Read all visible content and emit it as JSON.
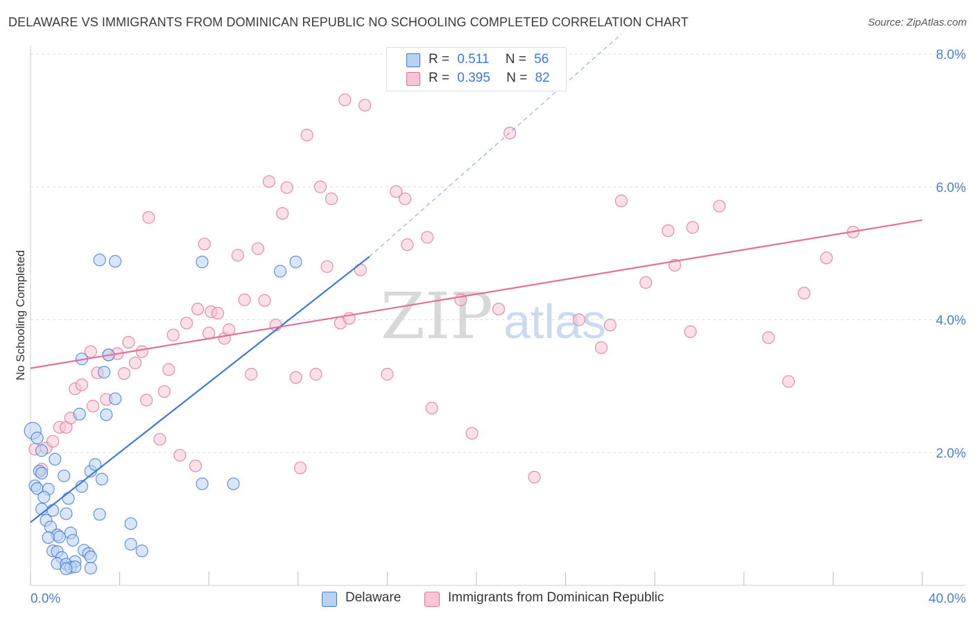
{
  "title": "DELAWARE VS IMMIGRANTS FROM DOMINICAN REPUBLIC NO SCHOOLING COMPLETED CORRELATION CHART",
  "source": "Source: ZipAtlas.com",
  "colors": {
    "blue": "#3c78d8",
    "blue_fill": "#b9d2f3",
    "pink": "#e0709a",
    "pink_fill": "#f7c6d6",
    "grid": "#dddddd"
  },
  "legend": {
    "rows": [
      {
        "r_label": "R =",
        "r_value": "0.511",
        "n_label": "N =",
        "n_value": "56"
      },
      {
        "r_label": "R =",
        "r_value": "0.395",
        "n_label": "N =",
        "n_value": "82"
      }
    ]
  },
  "bottom_legend": {
    "series1": "Delaware",
    "series2": "Immigrants from Dominican Republic"
  },
  "watermark": {
    "zip": "ZIP",
    "atlas": "atlas"
  },
  "chart_data": {
    "type": "scatter",
    "xlabel": "",
    "ylabel": "No Schooling Completed",
    "xlim": [
      0,
      40
    ],
    "ylim": [
      0,
      8
    ],
    "x_tick_labels": [
      "0.0%",
      "40.0%"
    ],
    "y_ticks": [
      2,
      4,
      6,
      8
    ],
    "y_tick_labels": [
      "2.0%",
      "4.0%",
      "6.0%",
      "8.0%"
    ],
    "series": [
      {
        "name": "Delaware",
        "R": 0.511,
        "N": 56,
        "trend": {
          "x0": 0,
          "y0": 0.95,
          "x1": 15.2,
          "y1": 4.95,
          "dashed_to_x": 26.5,
          "dashed_to_y": 8.3
        },
        "points": [
          [
            0.1,
            2.33
          ],
          [
            0.3,
            2.22
          ],
          [
            0.5,
            2.03
          ],
          [
            1.1,
            1.9
          ],
          [
            0.4,
            1.72
          ],
          [
            0.5,
            1.69
          ],
          [
            0.2,
            1.5
          ],
          [
            0.3,
            1.46
          ],
          [
            0.8,
            1.45
          ],
          [
            1.5,
            1.65
          ],
          [
            2.3,
            1.49
          ],
          [
            1.7,
            1.31
          ],
          [
            0.6,
            1.33
          ],
          [
            0.5,
            1.15
          ],
          [
            1.0,
            1.13
          ],
          [
            1.6,
            1.08
          ],
          [
            3.1,
            1.07
          ],
          [
            0.7,
            0.98
          ],
          [
            0.9,
            0.88
          ],
          [
            1.2,
            0.76
          ],
          [
            1.8,
            0.79
          ],
          [
            1.3,
            0.73
          ],
          [
            0.8,
            0.72
          ],
          [
            1.9,
            0.68
          ],
          [
            1.0,
            0.52
          ],
          [
            1.2,
            0.51
          ],
          [
            2.4,
            0.53
          ],
          [
            2.6,
            0.48
          ],
          [
            2.7,
            0.43
          ],
          [
            1.4,
            0.42
          ],
          [
            2.0,
            0.36
          ],
          [
            1.2,
            0.33
          ],
          [
            1.6,
            0.32
          ],
          [
            1.8,
            0.27
          ],
          [
            2.0,
            0.28
          ],
          [
            1.6,
            0.25
          ],
          [
            2.7,
            0.26
          ],
          [
            4.5,
            0.93
          ],
          [
            4.5,
            0.62
          ],
          [
            5.0,
            0.52
          ],
          [
            2.2,
            2.58
          ],
          [
            2.7,
            1.72
          ],
          [
            2.9,
            1.82
          ],
          [
            3.2,
            1.6
          ],
          [
            3.4,
            2.57
          ],
          [
            3.8,
            2.81
          ],
          [
            3.3,
            3.21
          ],
          [
            2.3,
            3.41
          ],
          [
            3.5,
            3.47
          ],
          [
            3.1,
            4.9
          ],
          [
            3.8,
            4.88
          ],
          [
            7.7,
            4.87
          ],
          [
            11.2,
            4.73
          ],
          [
            11.9,
            4.87
          ],
          [
            7.7,
            1.53
          ],
          [
            9.1,
            1.53
          ]
        ]
      },
      {
        "name": "Immigrants from Dominican Republic",
        "R": 0.395,
        "N": 82,
        "trend": {
          "x0": 0,
          "y0": 3.27,
          "x1": 40,
          "y1": 5.5
        },
        "points": [
          [
            0.2,
            2.05
          ],
          [
            0.5,
            1.75
          ],
          [
            0.7,
            2.07
          ],
          [
            1.0,
            2.17
          ],
          [
            1.3,
            2.38
          ],
          [
            1.6,
            2.38
          ],
          [
            1.8,
            2.52
          ],
          [
            2.0,
            2.96
          ],
          [
            2.3,
            3.02
          ],
          [
            2.7,
            3.52
          ],
          [
            2.8,
            2.7
          ],
          [
            3.0,
            3.2
          ],
          [
            3.4,
            2.8
          ],
          [
            3.5,
            3.47
          ],
          [
            3.9,
            3.49
          ],
          [
            4.2,
            3.19
          ],
          [
            4.4,
            3.66
          ],
          [
            4.7,
            3.35
          ],
          [
            5.0,
            3.52
          ],
          [
            5.2,
            2.79
          ],
          [
            5.3,
            5.54
          ],
          [
            5.8,
            2.2
          ],
          [
            6.0,
            2.92
          ],
          [
            6.2,
            3.25
          ],
          [
            6.4,
            3.77
          ],
          [
            6.7,
            1.96
          ],
          [
            7.0,
            3.95
          ],
          [
            7.4,
            1.8
          ],
          [
            7.5,
            4.16
          ],
          [
            7.8,
            5.14
          ],
          [
            8.0,
            3.8
          ],
          [
            8.1,
            4.12
          ],
          [
            8.4,
            4.1
          ],
          [
            8.7,
            3.72
          ],
          [
            8.9,
            3.85
          ],
          [
            9.3,
            4.97
          ],
          [
            9.6,
            4.3
          ],
          [
            9.9,
            3.18
          ],
          [
            10.2,
            5.07
          ],
          [
            10.5,
            4.29
          ],
          [
            10.7,
            6.08
          ],
          [
            11.0,
            3.92
          ],
          [
            11.3,
            5.6
          ],
          [
            11.5,
            5.99
          ],
          [
            11.9,
            3.13
          ],
          [
            12.1,
            1.77
          ],
          [
            12.4,
            6.78
          ],
          [
            12.8,
            3.18
          ],
          [
            13.0,
            6.0
          ],
          [
            13.3,
            4.8
          ],
          [
            13.5,
            5.82
          ],
          [
            13.9,
            3.95
          ],
          [
            14.1,
            7.31
          ],
          [
            14.3,
            4.02
          ],
          [
            14.8,
            4.75
          ],
          [
            15.0,
            7.23
          ],
          [
            16.0,
            3.18
          ],
          [
            16.4,
            5.93
          ],
          [
            16.8,
            5.82
          ],
          [
            16.9,
            5.13
          ],
          [
            17.8,
            5.24
          ],
          [
            18.0,
            2.67
          ],
          [
            19.3,
            4.3
          ],
          [
            19.8,
            2.29
          ],
          [
            21.0,
            4.16
          ],
          [
            21.5,
            6.81
          ],
          [
            22.6,
            1.63
          ],
          [
            24.6,
            4.0
          ],
          [
            25.6,
            3.58
          ],
          [
            26.0,
            3.92
          ],
          [
            26.5,
            5.79
          ],
          [
            27.6,
            4.56
          ],
          [
            28.6,
            5.34
          ],
          [
            28.9,
            4.82
          ],
          [
            29.6,
            3.82
          ],
          [
            29.7,
            5.39
          ],
          [
            30.9,
            5.71
          ],
          [
            33.1,
            3.73
          ],
          [
            34.0,
            3.07
          ],
          [
            34.7,
            4.4
          ],
          [
            35.7,
            4.93
          ],
          [
            36.9,
            5.32
          ]
        ]
      }
    ]
  }
}
